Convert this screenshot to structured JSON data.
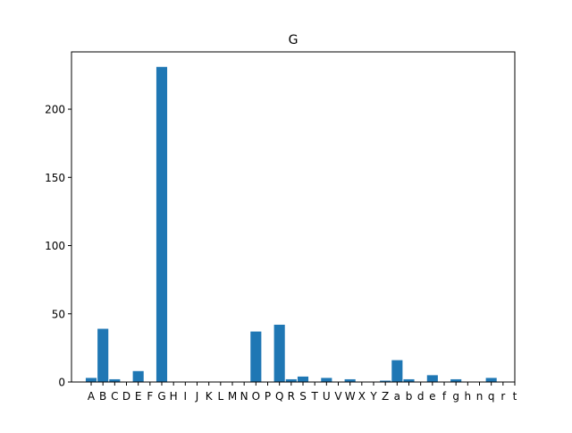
{
  "chart_data": {
    "type": "bar",
    "title": "G",
    "xlabel": "",
    "ylabel": "",
    "categories": [
      "A",
      "B",
      "C",
      "D",
      "E",
      "F",
      "G",
      "H",
      "I",
      "J",
      "K",
      "L",
      "M",
      "N",
      "O",
      "P",
      "Q",
      "R",
      "S",
      "T",
      "U",
      "V",
      "W",
      "X",
      "Y",
      "Z",
      "a",
      "b",
      "d",
      "e",
      "f",
      "g",
      "h",
      "n",
      "q",
      "r",
      "t"
    ],
    "values": [
      3,
      39,
      2,
      0,
      8,
      0,
      231,
      0,
      0,
      0,
      0,
      0,
      0,
      0,
      37,
      0,
      42,
      2,
      4,
      0,
      3,
      0,
      2,
      0,
      0,
      1,
      16,
      2,
      0,
      5,
      0,
      2,
      0,
      0,
      3,
      0,
      0
    ],
    "ylim": [
      0,
      242
    ],
    "yticks": [
      0,
      50,
      100,
      150,
      200
    ],
    "grid": false,
    "bar_color": "#1f77b4"
  }
}
